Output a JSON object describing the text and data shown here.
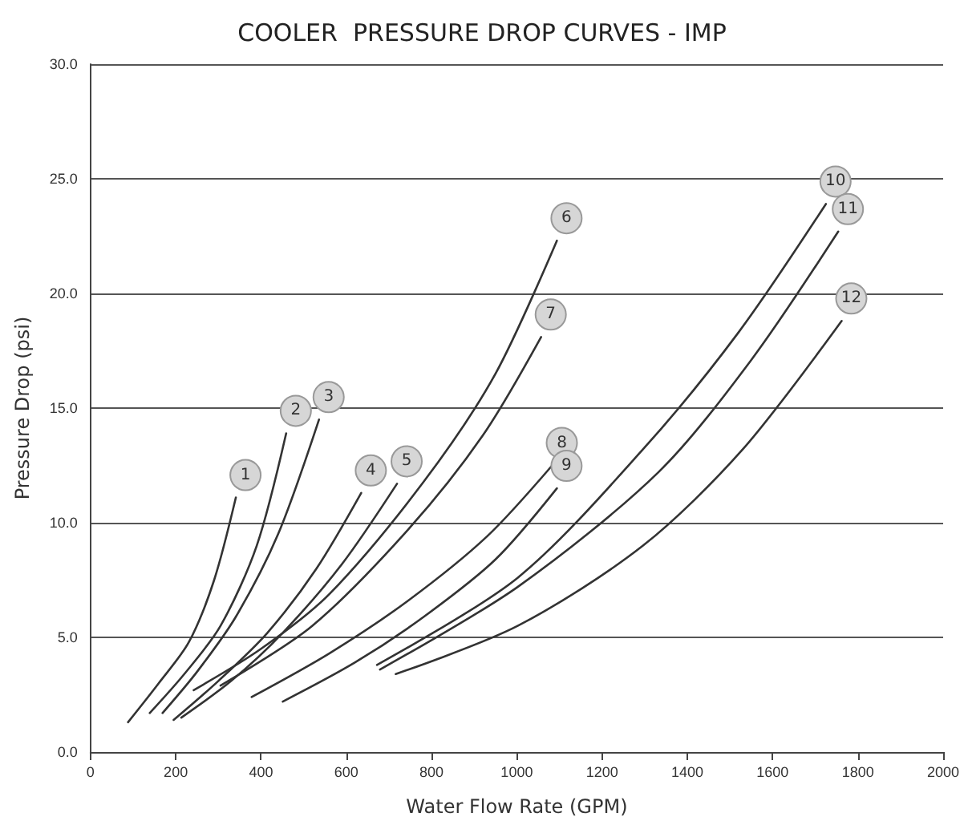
{
  "chart_data": {
    "type": "line",
    "title": "COOLER  PRESSURE DROP CURVES - IMP",
    "xlabel": "Water Flow Rate (GPM)",
    "ylabel": "Pressure Drop (psi)",
    "xlim": [
      0,
      2000
    ],
    "xticks": [
      0,
      200,
      400,
      600,
      800,
      1000,
      1200,
      1400,
      1600,
      1800,
      2000
    ],
    "ylim": [
      0,
      30
    ],
    "yticks": [
      {
        "value": 0,
        "label": "0.0"
      },
      {
        "value": 5,
        "label": "5.0"
      },
      {
        "value": 10,
        "label": "10.0"
      },
      {
        "value": 15,
        "label": "15.0"
      },
      {
        "value": 20,
        "label": "20.0"
      },
      {
        "value": 25,
        "label": "25.0"
      },
      {
        "value": 30,
        "label": "30.0"
      }
    ],
    "grid": "y",
    "legend": false,
    "marker": "none",
    "line_style": "solid",
    "series": [
      {
        "name": "1",
        "color": "#333333",
        "x": [
          88,
          160,
          231,
          290,
          341
        ],
        "values": [
          1.3,
          3,
          4.8,
          7.5,
          11.1
        ]
      },
      {
        "name": "2",
        "color": "#333333",
        "x": [
          139,
          220,
          305,
          390,
          459
        ],
        "values": [
          1.7,
          3.4,
          5.5,
          9,
          13.9
        ]
      },
      {
        "name": "3",
        "color": "#333333",
        "x": [
          169,
          250,
          341,
          440,
          536
        ],
        "values": [
          1.7,
          3.5,
          5.9,
          9.5,
          14.5
        ]
      },
      {
        "name": "4",
        "color": "#333333",
        "x": [
          195,
          300,
          415,
          530,
          635
        ],
        "values": [
          1.4,
          3.1,
          5.2,
          8,
          11.3
        ]
      },
      {
        "name": "5",
        "color": "#333333",
        "x": [
          213,
          330,
          451,
          590,
          719
        ],
        "values": [
          1.5,
          3.1,
          5.2,
          8.2,
          11.7
        ]
      },
      {
        "name": "6",
        "color": "#333333",
        "x": [
          242,
          400,
          561,
          782,
          950,
          1094
        ],
        "values": [
          2.7,
          4.5,
          6.9,
          11.8,
          16.5,
          22.3
        ]
      },
      {
        "name": "7",
        "color": "#333333",
        "x": [
          305,
          520,
          745,
          920,
          1057
        ],
        "values": [
          2.9,
          5.5,
          9.7,
          13.8,
          18.1
        ]
      },
      {
        "name": "8",
        "color": "#333333",
        "x": [
          378,
          560,
          745,
          930,
          1083
        ],
        "values": [
          2.4,
          4.3,
          6.6,
          9.4,
          12.5
        ]
      },
      {
        "name": "9",
        "color": "#333333",
        "x": [
          451,
          620,
          782,
          950,
          1094
        ],
        "values": [
          2.2,
          3.9,
          5.9,
          8.4,
          11.5
        ]
      },
      {
        "name": "10",
        "color": "#333333",
        "x": [
          672,
          1002,
          1296,
          1520,
          1725
        ],
        "values": [
          3.8,
          7.6,
          13.2,
          18.3,
          23.9
        ]
      },
      {
        "name": "11",
        "color": "#333333",
        "x": [
          679,
          1002,
          1332,
          1550,
          1754
        ],
        "values": [
          3.6,
          7.2,
          12.2,
          17.1,
          22.7
        ]
      },
      {
        "name": "12",
        "color": "#333333",
        "x": [
          716,
          1002,
          1296,
          1530,
          1762
        ],
        "values": [
          3.4,
          5.5,
          9,
          13.2,
          18.8
        ]
      }
    ]
  }
}
